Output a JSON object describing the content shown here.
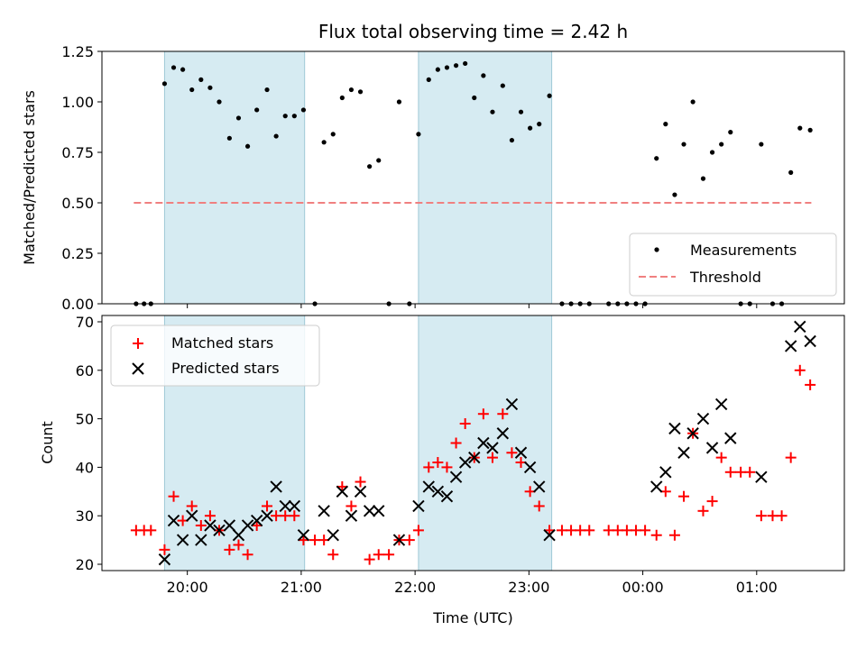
{
  "chart_data": [
    {
      "type": "scatter",
      "title": "Flux total observing time = 2.42 h",
      "ylabel": "Matched/Predicted stars",
      "xlabel": "",
      "ylim": [
        0,
        1.25
      ],
      "yticks": [
        0,
        0.25,
        0.5,
        0.75,
        1.0,
        1.25
      ],
      "ytick_labels": [
        "0.00",
        "0.25",
        "0.50",
        "0.75",
        "1.00",
        "1.25"
      ],
      "x_unit": "hours since 19:00 UTC",
      "xlim": [
        0.25,
        6.77
      ],
      "shaded_intervals": [
        [
          0.8,
          2.03
        ],
        [
          3.03,
          4.2
        ]
      ],
      "legend": {
        "placement": "lower-right",
        "entries": [
          "Measurements",
          "Threshold"
        ]
      },
      "threshold": {
        "name": "Threshold",
        "value": 0.5,
        "x_range": [
          0.53,
          6.48
        ],
        "color": "#f08080"
      },
      "series": [
        {
          "name": "Measurements",
          "color": "#000000",
          "points": [
            [
              0.55,
              0.0
            ],
            [
              0.62,
              0.0
            ],
            [
              0.68,
              0.0
            ],
            [
              0.8,
              1.09
            ],
            [
              0.88,
              1.17
            ],
            [
              0.96,
              1.16
            ],
            [
              1.04,
              1.06
            ],
            [
              1.12,
              1.11
            ],
            [
              1.2,
              1.07
            ],
            [
              1.28,
              1.0
            ],
            [
              1.37,
              0.82
            ],
            [
              1.45,
              0.92
            ],
            [
              1.53,
              0.78
            ],
            [
              1.61,
              0.96
            ],
            [
              1.7,
              1.06
            ],
            [
              1.78,
              0.83
            ],
            [
              1.86,
              0.93
            ],
            [
              1.94,
              0.93
            ],
            [
              2.02,
              0.96
            ],
            [
              2.12,
              0.0
            ],
            [
              2.2,
              0.8
            ],
            [
              2.28,
              0.84
            ],
            [
              2.36,
              1.02
            ],
            [
              2.44,
              1.06
            ],
            [
              2.52,
              1.05
            ],
            [
              2.6,
              0.68
            ],
            [
              2.68,
              0.71
            ],
            [
              2.77,
              0.0
            ],
            [
              2.86,
              1.0
            ],
            [
              2.95,
              0.0
            ],
            [
              3.03,
              0.84
            ],
            [
              3.12,
              1.11
            ],
            [
              3.2,
              1.16
            ],
            [
              3.28,
              1.17
            ],
            [
              3.36,
              1.18
            ],
            [
              3.44,
              1.19
            ],
            [
              3.52,
              1.02
            ],
            [
              3.6,
              1.13
            ],
            [
              3.68,
              0.95
            ],
            [
              3.77,
              1.08
            ],
            [
              3.85,
              0.81
            ],
            [
              3.93,
              0.95
            ],
            [
              4.01,
              0.87
            ],
            [
              4.09,
              0.89
            ],
            [
              4.18,
              1.03
            ],
            [
              4.29,
              0.0
            ],
            [
              4.37,
              0.0
            ],
            [
              4.45,
              0.0
            ],
            [
              4.53,
              0.0
            ],
            [
              4.7,
              0.0
            ],
            [
              4.78,
              0.0
            ],
            [
              4.86,
              0.0
            ],
            [
              4.94,
              0.0
            ],
            [
              5.02,
              0.0
            ],
            [
              5.12,
              0.72
            ],
            [
              5.2,
              0.89
            ],
            [
              5.28,
              0.54
            ],
            [
              5.36,
              0.79
            ],
            [
              5.44,
              1.0
            ],
            [
              5.53,
              0.62
            ],
            [
              5.61,
              0.75
            ],
            [
              5.69,
              0.79
            ],
            [
              5.77,
              0.85
            ],
            [
              5.86,
              0.0
            ],
            [
              5.94,
              0.0
            ],
            [
              6.04,
              0.79
            ],
            [
              6.14,
              0.0
            ],
            [
              6.22,
              0.0
            ],
            [
              6.3,
              0.65
            ],
            [
              6.38,
              0.87
            ],
            [
              6.47,
              0.86
            ]
          ]
        }
      ]
    },
    {
      "type": "scatter",
      "title": "",
      "ylabel": "Count",
      "xlabel": "Time (UTC)",
      "ylim": [
        18.7,
        71.3
      ],
      "yticks": [
        20,
        30,
        40,
        50,
        60,
        70
      ],
      "ytick_labels": [
        "20",
        "30",
        "40",
        "50",
        "60",
        "70"
      ],
      "x_unit": "hours since 19:00 UTC",
      "xlim": [
        0.25,
        6.77
      ],
      "xticks": [
        1,
        2,
        3,
        4,
        5,
        6
      ],
      "xtick_labels": [
        "20:00",
        "21:00",
        "22:00",
        "23:00",
        "00:00",
        "01:00"
      ],
      "shaded_intervals": [
        [
          0.8,
          2.03
        ],
        [
          3.03,
          4.2
        ]
      ],
      "legend": {
        "placement": "upper-left",
        "entries": [
          "Matched stars",
          "Predicted stars"
        ]
      },
      "series": [
        {
          "name": "Matched stars",
          "marker": "plus",
          "color": "#ff0000",
          "points": [
            [
              0.55,
              27
            ],
            [
              0.62,
              27
            ],
            [
              0.68,
              27
            ],
            [
              0.8,
              23
            ],
            [
              0.88,
              34
            ],
            [
              0.96,
              29
            ],
            [
              1.04,
              32
            ],
            [
              1.12,
              28
            ],
            [
              1.2,
              30
            ],
            [
              1.28,
              27
            ],
            [
              1.37,
              23
            ],
            [
              1.45,
              24
            ],
            [
              1.53,
              22
            ],
            [
              1.61,
              28
            ],
            [
              1.7,
              32
            ],
            [
              1.78,
              30
            ],
            [
              1.86,
              30
            ],
            [
              1.94,
              30
            ],
            [
              2.02,
              25
            ],
            [
              2.12,
              25
            ],
            [
              2.2,
              25
            ],
            [
              2.28,
              22
            ],
            [
              2.36,
              36
            ],
            [
              2.44,
              32
            ],
            [
              2.52,
              37
            ],
            [
              2.6,
              21
            ],
            [
              2.68,
              22
            ],
            [
              2.77,
              22
            ],
            [
              2.86,
              25
            ],
            [
              2.95,
              25
            ],
            [
              3.03,
              27
            ],
            [
              3.12,
              40
            ],
            [
              3.2,
              41
            ],
            [
              3.28,
              40
            ],
            [
              3.36,
              45
            ],
            [
              3.44,
              49
            ],
            [
              3.52,
              42
            ],
            [
              3.6,
              51
            ],
            [
              3.68,
              42
            ],
            [
              3.77,
              51
            ],
            [
              3.85,
              43
            ],
            [
              3.93,
              41
            ],
            [
              4.01,
              35
            ],
            [
              4.09,
              32
            ],
            [
              4.18,
              27
            ],
            [
              4.29,
              27
            ],
            [
              4.37,
              27
            ],
            [
              4.45,
              27
            ],
            [
              4.53,
              27
            ],
            [
              4.7,
              27
            ],
            [
              4.78,
              27
            ],
            [
              4.86,
              27
            ],
            [
              4.94,
              27
            ],
            [
              5.02,
              27
            ],
            [
              5.12,
              26
            ],
            [
              5.2,
              35
            ],
            [
              5.28,
              26
            ],
            [
              5.36,
              34
            ],
            [
              5.44,
              47
            ],
            [
              5.53,
              31
            ],
            [
              5.61,
              33
            ],
            [
              5.69,
              42
            ],
            [
              5.77,
              39
            ],
            [
              5.86,
              39
            ],
            [
              5.94,
              39
            ],
            [
              6.04,
              30
            ],
            [
              6.14,
              30
            ],
            [
              6.22,
              30
            ],
            [
              6.3,
              42
            ],
            [
              6.38,
              60
            ],
            [
              6.47,
              57
            ]
          ]
        },
        {
          "name": "Predicted stars",
          "marker": "x",
          "color": "#000000",
          "points": [
            [
              0.8,
              21
            ],
            [
              0.88,
              29
            ],
            [
              0.96,
              25
            ],
            [
              1.04,
              30
            ],
            [
              1.12,
              25
            ],
            [
              1.2,
              28
            ],
            [
              1.28,
              27
            ],
            [
              1.37,
              28
            ],
            [
              1.45,
              26
            ],
            [
              1.53,
              28
            ],
            [
              1.61,
              29
            ],
            [
              1.7,
              30
            ],
            [
              1.78,
              36
            ],
            [
              1.86,
              32
            ],
            [
              1.94,
              32
            ],
            [
              2.02,
              26
            ],
            [
              2.2,
              31
            ],
            [
              2.28,
              26
            ],
            [
              2.36,
              35
            ],
            [
              2.44,
              30
            ],
            [
              2.52,
              35
            ],
            [
              2.6,
              31
            ],
            [
              2.68,
              31
            ],
            [
              2.86,
              25
            ],
            [
              3.03,
              32
            ],
            [
              3.12,
              36
            ],
            [
              3.2,
              35
            ],
            [
              3.28,
              34
            ],
            [
              3.36,
              38
            ],
            [
              3.44,
              41
            ],
            [
              3.52,
              42
            ],
            [
              3.6,
              45
            ],
            [
              3.68,
              44
            ],
            [
              3.77,
              47
            ],
            [
              3.85,
              53
            ],
            [
              3.93,
              43
            ],
            [
              4.01,
              40
            ],
            [
              4.09,
              36
            ],
            [
              4.18,
              26
            ],
            [
              5.12,
              36
            ],
            [
              5.2,
              39
            ],
            [
              5.28,
              48
            ],
            [
              5.36,
              43
            ],
            [
              5.44,
              47
            ],
            [
              5.53,
              50
            ],
            [
              5.61,
              44
            ],
            [
              5.69,
              53
            ],
            [
              5.77,
              46
            ],
            [
              6.04,
              38
            ],
            [
              6.3,
              65
            ],
            [
              6.38,
              69
            ],
            [
              6.47,
              66
            ]
          ]
        }
      ]
    }
  ]
}
